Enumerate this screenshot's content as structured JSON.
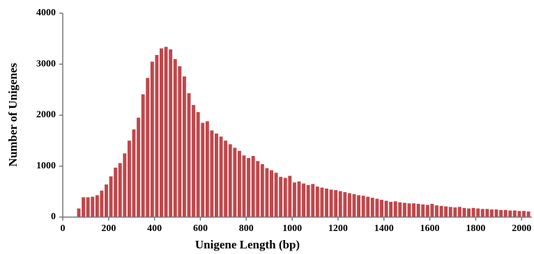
{
  "chart_data": {
    "type": "histogram",
    "x_label": "Unigene Length (bp)",
    "y_label": "Number of Unigenes",
    "bins": [
      60,
      80,
      100,
      120,
      140,
      160,
      180,
      200,
      220,
      240,
      260,
      280,
      300,
      320,
      340,
      360,
      380,
      400,
      420,
      440,
      460,
      480,
      500,
      520,
      540,
      560,
      580,
      600,
      620,
      640,
      660,
      680,
      700,
      720,
      740,
      760,
      780,
      800,
      820,
      840,
      860,
      880,
      900,
      920,
      940,
      960,
      980,
      1000,
      1020,
      1040,
      1060,
      1080,
      1100,
      1120,
      1140,
      1160,
      1180,
      1200,
      1220,
      1240,
      1260,
      1280,
      1300,
      1320,
      1340,
      1360,
      1380,
      1400,
      1420,
      1440,
      1460,
      1480,
      1500,
      1520,
      1540,
      1560,
      1580,
      1600,
      1620,
      1640,
      1660,
      1680,
      1700,
      1720,
      1740,
      1760,
      1780,
      1800,
      1820,
      1840,
      1860,
      1880,
      1900,
      1920,
      1940,
      1960,
      1980,
      2000,
      2020,
      2040
    ],
    "values": [
      170,
      390,
      390,
      400,
      430,
      520,
      640,
      800,
      970,
      1060,
      1250,
      1500,
      1720,
      1950,
      2410,
      2730,
      3050,
      3180,
      3310,
      3340,
      3290,
      3100,
      2960,
      2760,
      2430,
      2200,
      2060,
      1850,
      1880,
      1700,
      1640,
      1580,
      1500,
      1430,
      1360,
      1300,
      1210,
      1160,
      1200,
      1100,
      1040,
      960,
      920,
      870,
      790,
      770,
      810,
      680,
      700,
      660,
      630,
      650,
      600,
      580,
      560,
      540,
      530,
      510,
      490,
      470,
      450,
      430,
      420,
      400,
      380,
      360,
      340,
      320,
      300,
      310,
      290,
      280,
      270,
      270,
      260,
      250,
      240,
      260,
      230,
      220,
      210,
      200,
      190,
      200,
      180,
      170,
      180,
      170,
      160,
      160,
      150,
      150,
      140,
      140,
      130,
      130,
      120,
      120,
      110
    ],
    "color": "#c0474b",
    "xlim": [
      0,
      2045
    ],
    "xticks": [
      0,
      200,
      400,
      600,
      800,
      1000,
      1200,
      1400,
      1600,
      1800,
      2000
    ],
    "ylim": [
      0,
      4000
    ],
    "yticks": [
      0,
      1000,
      2000,
      3000,
      4000
    ]
  }
}
